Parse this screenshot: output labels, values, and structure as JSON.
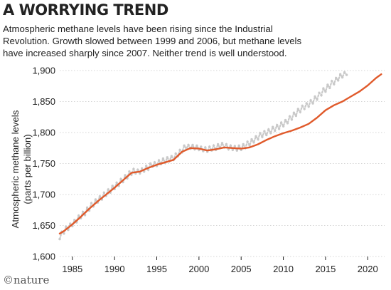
{
  "header": {
    "title": "A WORRYING TREND",
    "subtitle_lines": [
      "Atmospheric methane levels have been rising since the Industrial",
      "Revolution. Growth slowed between 1999 and 2006, but methane levels",
      "have increased sharply since 2007. Neither trend is well understood."
    ]
  },
  "footer": {
    "credit": "©nature"
  },
  "colors": {
    "trend": "#e05a2b",
    "monthly": "#c9c9c9",
    "grid": "#c8c8c8",
    "text": "#222222"
  },
  "chart_data": {
    "type": "line",
    "ylabel_lines": [
      "Atmospheric methane levels",
      "(parts per billion)"
    ],
    "xlim": [
      1983.5,
      2022
    ],
    "ylim": [
      1600,
      1900
    ],
    "x_ticks": [
      1985,
      1990,
      1995,
      2000,
      2005,
      2010,
      2015,
      2020
    ],
    "y_ticks": [
      1600,
      1650,
      1700,
      1750,
      1800,
      1850,
      1900
    ],
    "y_tick_labels": [
      "1,600",
      "1,650",
      "1,700",
      "1,750",
      "1,800",
      "1,850",
      "1,900"
    ],
    "grid": true,
    "series": [
      {
        "role": "trend",
        "points": [
          [
            1983.5,
            1637
          ],
          [
            1984,
            1641
          ],
          [
            1985,
            1652
          ],
          [
            1986,
            1664
          ],
          [
            1987,
            1677
          ],
          [
            1988,
            1689
          ],
          [
            1989,
            1700
          ],
          [
            1990,
            1711
          ],
          [
            1991,
            1723
          ],
          [
            1992,
            1735
          ],
          [
            1993,
            1737
          ],
          [
            1994,
            1743
          ],
          [
            1995,
            1748
          ],
          [
            1996,
            1752
          ],
          [
            1997,
            1756
          ],
          [
            1998,
            1769
          ],
          [
            1999,
            1775
          ],
          [
            2000,
            1774
          ],
          [
            2001,
            1771
          ],
          [
            2002,
            1773
          ],
          [
            2003,
            1776
          ],
          [
            2004,
            1775
          ],
          [
            2005,
            1774
          ],
          [
            2006,
            1776
          ],
          [
            2007,
            1781
          ],
          [
            2008,
            1788
          ],
          [
            2009,
            1794
          ],
          [
            2010,
            1799
          ],
          [
            2011,
            1803
          ],
          [
            2012,
            1808
          ],
          [
            2013,
            1814
          ],
          [
            2014,
            1824
          ],
          [
            2015,
            1836
          ],
          [
            2016,
            1844
          ],
          [
            2017,
            1850
          ],
          [
            2018,
            1858
          ],
          [
            2019,
            1866
          ],
          [
            2020,
            1876
          ],
          [
            2021,
            1888
          ],
          [
            2021.6,
            1894
          ]
        ]
      },
      {
        "role": "monthly",
        "points": [
          [
            1983.5,
            1628
          ],
          [
            1983.75,
            1640
          ],
          [
            1984.0,
            1637
          ],
          [
            1984.25,
            1648
          ],
          [
            1984.5,
            1643
          ],
          [
            1984.75,
            1653
          ],
          [
            1985.0,
            1649
          ],
          [
            1985.25,
            1659
          ],
          [
            1985.5,
            1655
          ],
          [
            1985.75,
            1666
          ],
          [
            1986.0,
            1662
          ],
          [
            1986.25,
            1672
          ],
          [
            1986.5,
            1667
          ],
          [
            1986.75,
            1679
          ],
          [
            1987.0,
            1674
          ],
          [
            1987.25,
            1686
          ],
          [
            1987.5,
            1681
          ],
          [
            1987.75,
            1692
          ],
          [
            1988.0,
            1687
          ],
          [
            1988.25,
            1697
          ],
          [
            1988.5,
            1692
          ],
          [
            1988.75,
            1703
          ],
          [
            1989.0,
            1698
          ],
          [
            1989.25,
            1708
          ],
          [
            1989.5,
            1703
          ],
          [
            1989.75,
            1714
          ],
          [
            1990.0,
            1709
          ],
          [
            1990.25,
            1719
          ],
          [
            1990.5,
            1714
          ],
          [
            1990.75,
            1725
          ],
          [
            1991.0,
            1720
          ],
          [
            1991.25,
            1731
          ],
          [
            1991.5,
            1726
          ],
          [
            1991.75,
            1737
          ],
          [
            1992.0,
            1732
          ],
          [
            1992.25,
            1741
          ],
          [
            1992.5,
            1734
          ],
          [
            1992.75,
            1740
          ],
          [
            1993.0,
            1734
          ],
          [
            1993.25,
            1742
          ],
          [
            1993.5,
            1737
          ],
          [
            1993.75,
            1746
          ],
          [
            1994.0,
            1740
          ],
          [
            1994.25,
            1750
          ],
          [
            1994.5,
            1745
          ],
          [
            1994.75,
            1752
          ],
          [
            1995.0,
            1746
          ],
          [
            1995.25,
            1755
          ],
          [
            1995.5,
            1749
          ],
          [
            1995.75,
            1758
          ],
          [
            1996.0,
            1751
          ],
          [
            1996.25,
            1760
          ],
          [
            1996.5,
            1754
          ],
          [
            1996.75,
            1762
          ],
          [
            1997.0,
            1756
          ],
          [
            1997.25,
            1766
          ],
          [
            1997.5,
            1762
          ],
          [
            1997.75,
            1772
          ],
          [
            1998.0,
            1768
          ],
          [
            1998.25,
            1779
          ],
          [
            1998.5,
            1774
          ],
          [
            1998.75,
            1780
          ],
          [
            1999.0,
            1774
          ],
          [
            1999.25,
            1780
          ],
          [
            1999.5,
            1773
          ],
          [
            1999.75,
            1779
          ],
          [
            2000.0,
            1772
          ],
          [
            2000.25,
            1777
          ],
          [
            2000.5,
            1770
          ],
          [
            2000.75,
            1776
          ],
          [
            2001.0,
            1769
          ],
          [
            2001.25,
            1777
          ],
          [
            2001.5,
            1771
          ],
          [
            2001.75,
            1779
          ],
          [
            2002.0,
            1772
          ],
          [
            2002.25,
            1781
          ],
          [
            2002.5,
            1775
          ],
          [
            2002.75,
            1783
          ],
          [
            2003.0,
            1776
          ],
          [
            2003.25,
            1781
          ],
          [
            2003.5,
            1773
          ],
          [
            2003.75,
            1779
          ],
          [
            2004.0,
            1772
          ],
          [
            2004.25,
            1778
          ],
          [
            2004.5,
            1771
          ],
          [
            2004.75,
            1779
          ],
          [
            2005.0,
            1772
          ],
          [
            2005.25,
            1781
          ],
          [
            2005.5,
            1775
          ],
          [
            2005.75,
            1785
          ],
          [
            2006.0,
            1779
          ],
          [
            2006.25,
            1789
          ],
          [
            2006.5,
            1784
          ],
          [
            2006.75,
            1794
          ],
          [
            2007.0,
            1789
          ],
          [
            2007.25,
            1799
          ],
          [
            2007.5,
            1793
          ],
          [
            2007.75,
            1802
          ],
          [
            2008.0,
            1796
          ],
          [
            2008.25,
            1805
          ],
          [
            2008.5,
            1799
          ],
          [
            2008.75,
            1809
          ],
          [
            2009.0,
            1803
          ],
          [
            2009.25,
            1812
          ],
          [
            2009.5,
            1806
          ],
          [
            2009.75,
            1816
          ],
          [
            2010.0,
            1810
          ],
          [
            2010.25,
            1820
          ],
          [
            2010.5,
            1815
          ],
          [
            2010.75,
            1826
          ],
          [
            2011.0,
            1821
          ],
          [
            2011.25,
            1832
          ],
          [
            2011.5,
            1827
          ],
          [
            2011.75,
            1838
          ],
          [
            2012.0,
            1833
          ],
          [
            2012.25,
            1843
          ],
          [
            2012.5,
            1838
          ],
          [
            2012.75,
            1847
          ],
          [
            2013.0,
            1842
          ],
          [
            2013.25,
            1852
          ],
          [
            2013.5,
            1847
          ],
          [
            2013.75,
            1858
          ],
          [
            2014.0,
            1853
          ],
          [
            2014.25,
            1864
          ],
          [
            2014.5,
            1860
          ],
          [
            2014.75,
            1871
          ],
          [
            2015.0,
            1866
          ],
          [
            2015.25,
            1877
          ],
          [
            2015.5,
            1872
          ],
          [
            2015.75,
            1883
          ],
          [
            2016.0,
            1878
          ],
          [
            2016.25,
            1888
          ],
          [
            2016.5,
            1884
          ],
          [
            2016.75,
            1894
          ],
          [
            2017.0,
            1889
          ],
          [
            2017.25,
            1897
          ],
          [
            2017.5,
            1893
          ]
        ]
      }
    ]
  }
}
